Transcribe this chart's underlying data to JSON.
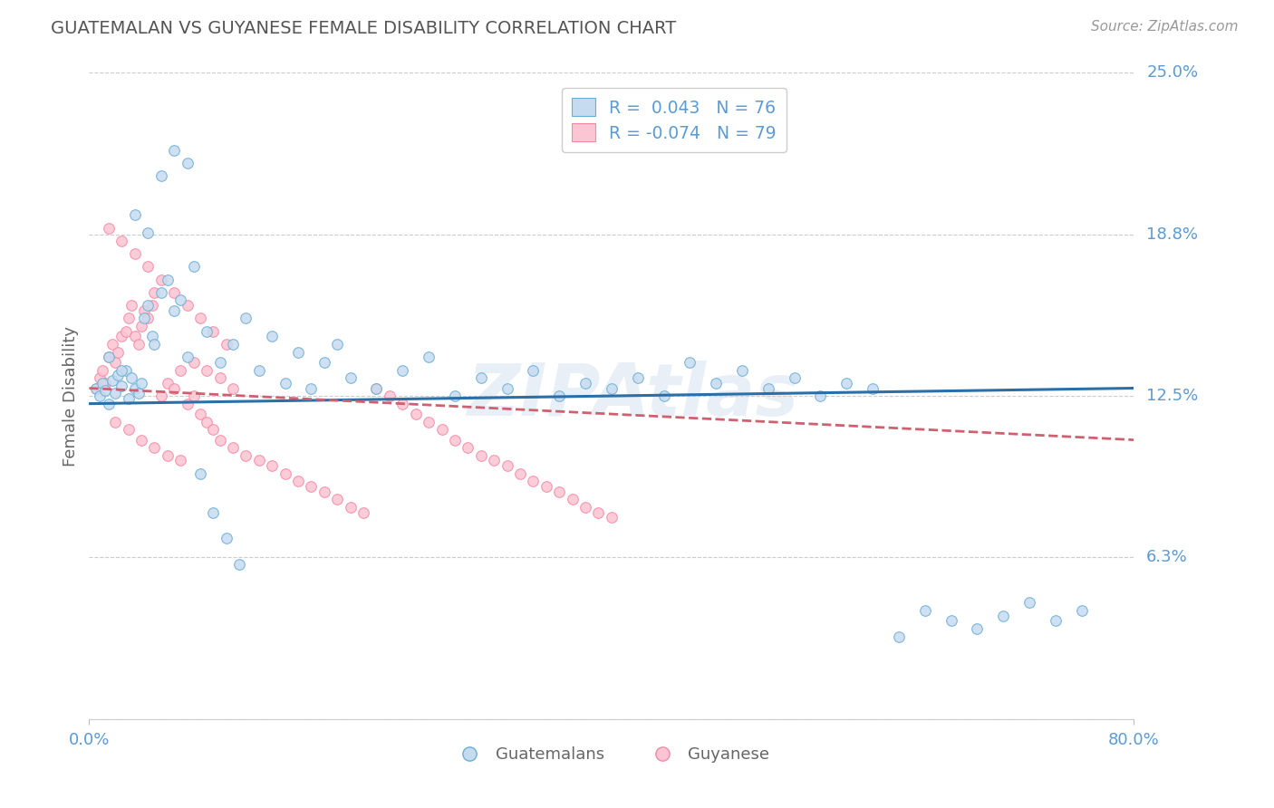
{
  "title": "GUATEMALAN VS GUYANESE FEMALE DISABILITY CORRELATION CHART",
  "source_text": "Source: ZipAtlas.com",
  "ylabel": "Female Disability",
  "xlim": [
    0.0,
    0.8
  ],
  "ylim": [
    0.0,
    0.25
  ],
  "yticks": [
    0.0,
    0.0625,
    0.125,
    0.1875,
    0.25
  ],
  "ytick_labels": [
    "",
    "6.3%",
    "12.5%",
    "18.8%",
    "25.0%"
  ],
  "blue_fill": "#c6dbef",
  "pink_fill": "#fcc5d3",
  "blue_edge": "#6aaed6",
  "pink_edge": "#f788a4",
  "trend_blue": "#2b6fa8",
  "trend_pink": "#d06070",
  "R_blue": 0.043,
  "N_blue": 76,
  "R_pink": -0.074,
  "N_pink": 79,
  "legend_label_blue": "Guatemalans",
  "legend_label_pink": "Guyanese",
  "watermark": "ZIPAtlas",
  "background_color": "#ffffff",
  "grid_color": "#cccccc",
  "title_color": "#555555",
  "axis_label_color": "#666666",
  "tick_label_color": "#5b9bd5",
  "source_color": "#999999",
  "legend_text_color": "#5b9bd5",
  "blue_x": [
    0.005,
    0.008,
    0.01,
    0.012,
    0.015,
    0.018,
    0.02,
    0.022,
    0.025,
    0.028,
    0.03,
    0.032,
    0.035,
    0.038,
    0.04,
    0.042,
    0.045,
    0.048,
    0.05,
    0.055,
    0.06,
    0.065,
    0.07,
    0.075,
    0.08,
    0.09,
    0.1,
    0.11,
    0.12,
    0.13,
    0.14,
    0.15,
    0.16,
    0.17,
    0.18,
    0.19,
    0.2,
    0.22,
    0.24,
    0.26,
    0.28,
    0.3,
    0.32,
    0.34,
    0.36,
    0.38,
    0.4,
    0.42,
    0.44,
    0.46,
    0.48,
    0.5,
    0.52,
    0.54,
    0.56,
    0.58,
    0.6,
    0.62,
    0.64,
    0.66,
    0.68,
    0.7,
    0.72,
    0.74,
    0.76,
    0.015,
    0.025,
    0.035,
    0.045,
    0.055,
    0.065,
    0.075,
    0.085,
    0.095,
    0.105,
    0.115
  ],
  "blue_y": [
    0.128,
    0.125,
    0.13,
    0.127,
    0.122,
    0.131,
    0.126,
    0.133,
    0.129,
    0.135,
    0.124,
    0.132,
    0.128,
    0.126,
    0.13,
    0.155,
    0.16,
    0.148,
    0.145,
    0.165,
    0.17,
    0.158,
    0.162,
    0.14,
    0.175,
    0.15,
    0.138,
    0.145,
    0.155,
    0.135,
    0.148,
    0.13,
    0.142,
    0.128,
    0.138,
    0.145,
    0.132,
    0.128,
    0.135,
    0.14,
    0.125,
    0.132,
    0.128,
    0.135,
    0.125,
    0.13,
    0.128,
    0.132,
    0.125,
    0.138,
    0.13,
    0.135,
    0.128,
    0.132,
    0.125,
    0.13,
    0.128,
    0.032,
    0.042,
    0.038,
    0.035,
    0.04,
    0.045,
    0.038,
    0.042,
    0.14,
    0.135,
    0.195,
    0.188,
    0.21,
    0.22,
    0.215,
    0.095,
    0.08,
    0.07,
    0.06
  ],
  "pink_x": [
    0.005,
    0.008,
    0.01,
    0.012,
    0.015,
    0.018,
    0.02,
    0.022,
    0.025,
    0.028,
    0.03,
    0.032,
    0.035,
    0.038,
    0.04,
    0.042,
    0.045,
    0.048,
    0.05,
    0.055,
    0.06,
    0.065,
    0.07,
    0.075,
    0.08,
    0.085,
    0.09,
    0.095,
    0.1,
    0.11,
    0.12,
    0.13,
    0.14,
    0.15,
    0.16,
    0.17,
    0.18,
    0.19,
    0.2,
    0.21,
    0.22,
    0.23,
    0.24,
    0.25,
    0.26,
    0.27,
    0.28,
    0.29,
    0.3,
    0.31,
    0.32,
    0.33,
    0.34,
    0.35,
    0.36,
    0.37,
    0.38,
    0.39,
    0.4,
    0.015,
    0.025,
    0.035,
    0.045,
    0.055,
    0.065,
    0.075,
    0.085,
    0.095,
    0.105,
    0.02,
    0.03,
    0.04,
    0.05,
    0.06,
    0.07,
    0.08,
    0.09,
    0.1,
    0.11
  ],
  "pink_y": [
    0.128,
    0.132,
    0.135,
    0.13,
    0.14,
    0.145,
    0.138,
    0.142,
    0.148,
    0.15,
    0.155,
    0.16,
    0.148,
    0.145,
    0.152,
    0.158,
    0.155,
    0.16,
    0.165,
    0.125,
    0.13,
    0.128,
    0.135,
    0.122,
    0.125,
    0.118,
    0.115,
    0.112,
    0.108,
    0.105,
    0.102,
    0.1,
    0.098,
    0.095,
    0.092,
    0.09,
    0.088,
    0.085,
    0.082,
    0.08,
    0.128,
    0.125,
    0.122,
    0.118,
    0.115,
    0.112,
    0.108,
    0.105,
    0.102,
    0.1,
    0.098,
    0.095,
    0.092,
    0.09,
    0.088,
    0.085,
    0.082,
    0.08,
    0.078,
    0.19,
    0.185,
    0.18,
    0.175,
    0.17,
    0.165,
    0.16,
    0.155,
    0.15,
    0.145,
    0.115,
    0.112,
    0.108,
    0.105,
    0.102,
    0.1,
    0.138,
    0.135,
    0.132,
    0.128
  ]
}
